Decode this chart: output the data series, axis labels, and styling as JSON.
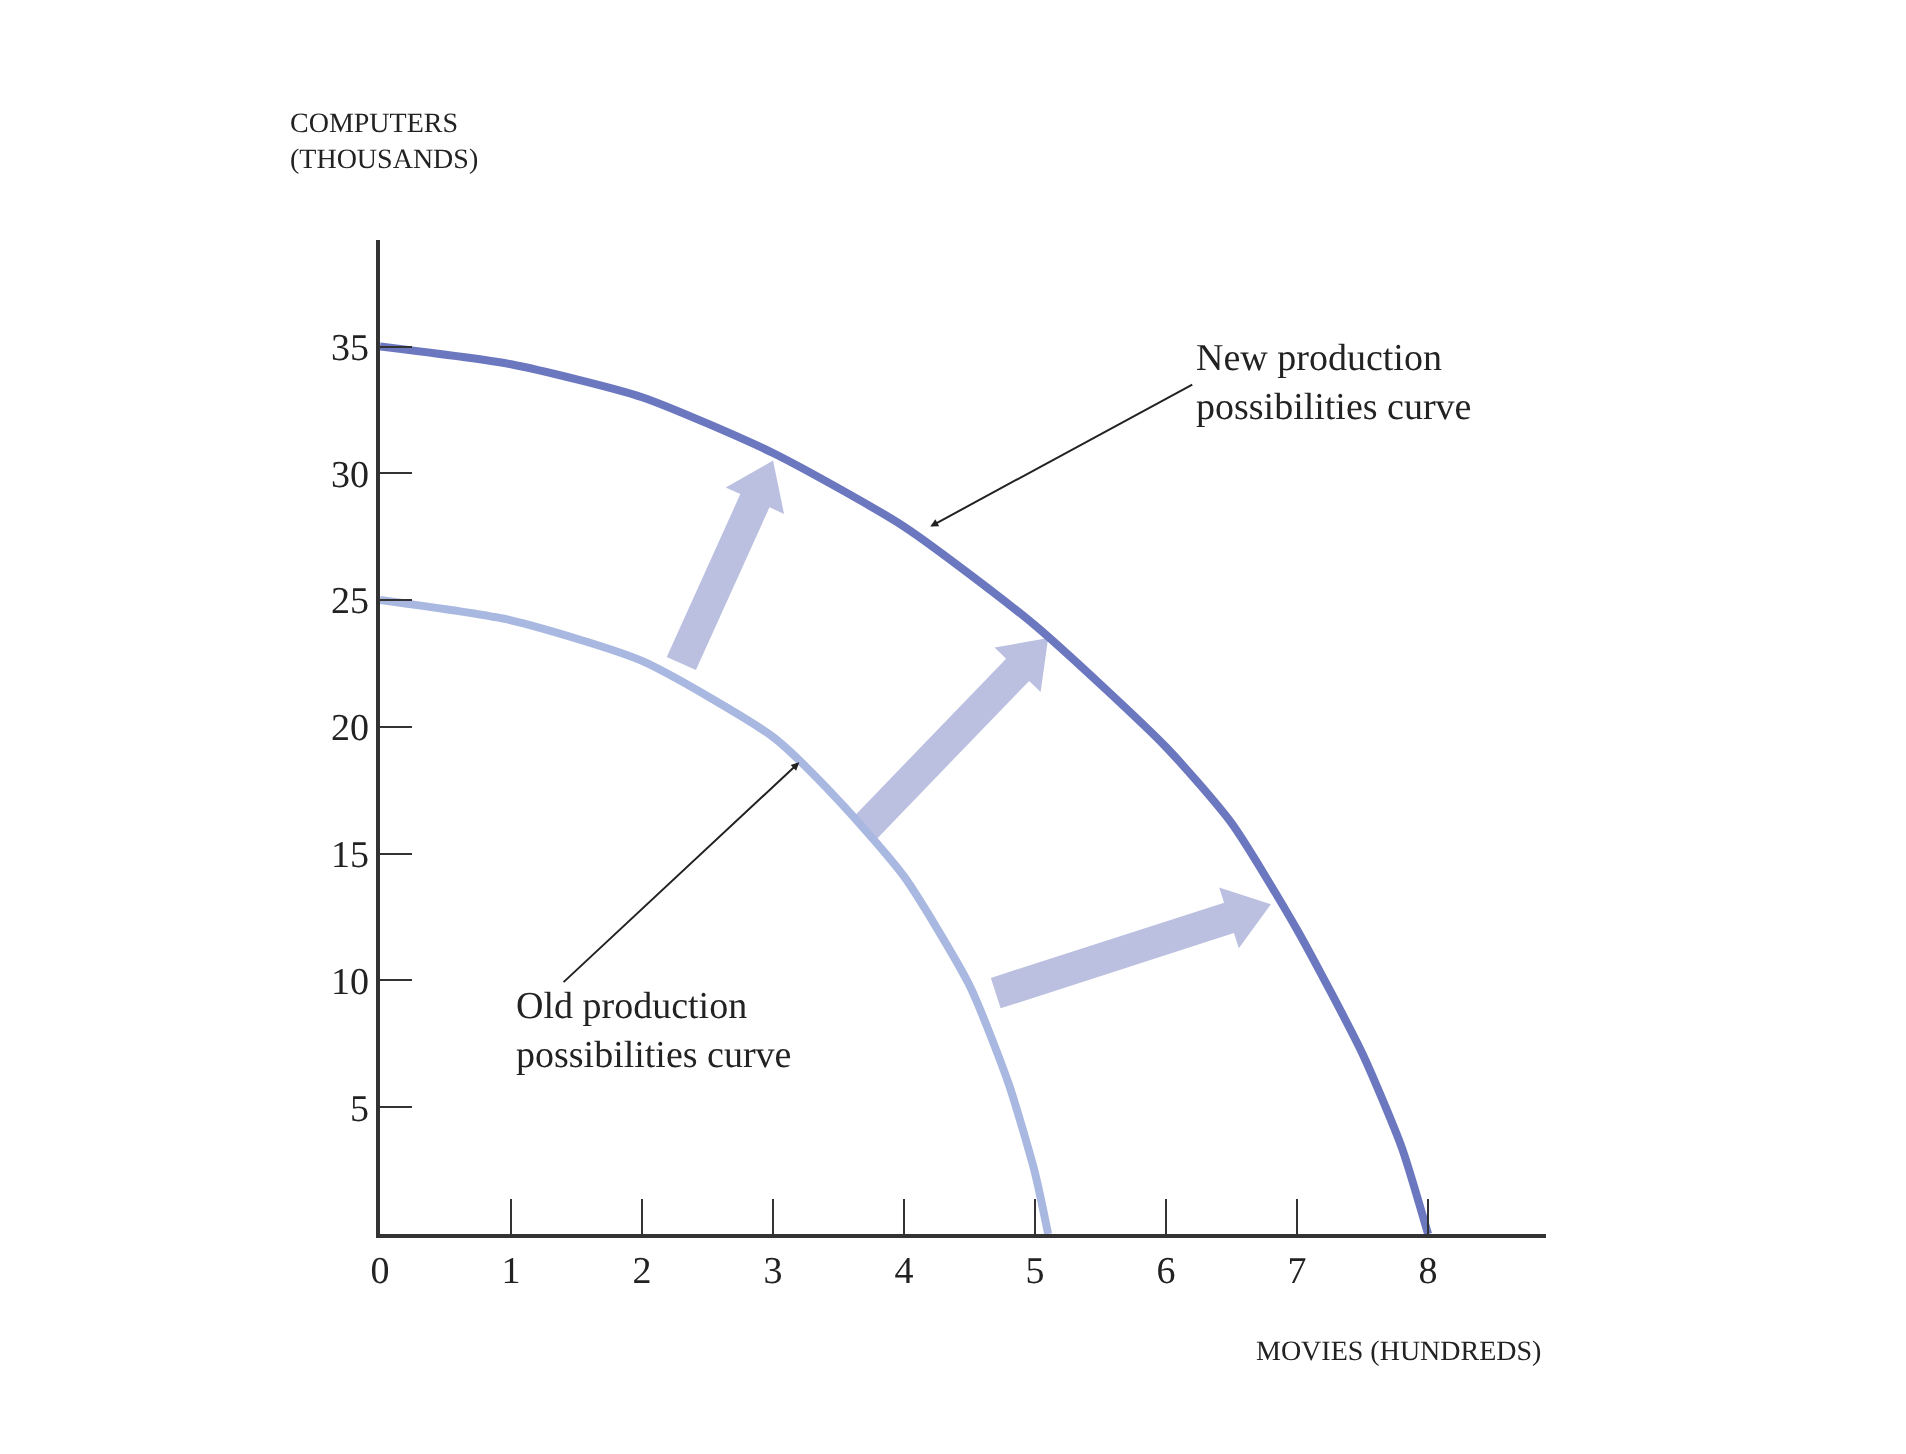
{
  "chart_data": {
    "type": "line",
    "xlabel": "MOVIES (HUNDREDS)",
    "ylabel": "COMPUTERS\n(THOUSANDS)",
    "series": [
      {
        "x": [
          0,
          1,
          2,
          3,
          3.5,
          4,
          4.5,
          4.8,
          5,
          5.1
        ],
        "values": [
          25,
          24.2,
          22.6,
          19.6,
          17.1,
          14.1,
          9.8,
          5.9,
          2.4,
          0
        ],
        "color": "#a9b8e0"
      },
      {
        "x": [
          0,
          1,
          2,
          3,
          4,
          5,
          6,
          6.5,
          7,
          7.5,
          7.8,
          8
        ],
        "values": [
          35,
          34.3,
          33.0,
          30.8,
          27.9,
          24.0,
          19.2,
          16.2,
          12.0,
          7.1,
          3.4,
          0
        ],
        "color": "#6b78bf"
      }
    ],
    "annotations": [
      {
        "text": "New production\npossibilities curve",
        "x": 4.2,
        "y": 27.9
      },
      {
        "text": "Old production\npossibilities curve",
        "x": 3.2,
        "y": 18.6
      }
    ],
    "xlim": [
      0,
      8.9
    ],
    "ylim": [
      0,
      39.2
    ],
    "xticks": [
      0,
      1,
      2,
      3,
      4,
      5,
      6,
      7,
      8
    ],
    "yticks": [
      5,
      10,
      15,
      20,
      25,
      30,
      35
    ],
    "grid": false,
    "marker": "none",
    "line_style": "solid"
  }
}
